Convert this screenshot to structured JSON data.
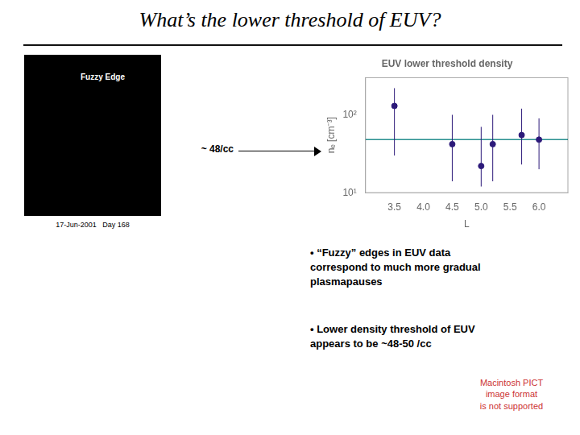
{
  "chart_data": {
    "type": "scatter",
    "title": "EUV lower threshold density",
    "x_label": "L",
    "y_label": "nₑ [cm⁻³]",
    "x": [
      3.5,
      4.5,
      5.0,
      5.2,
      5.7,
      6.0
    ],
    "values": [
      130,
      42,
      22,
      42,
      55,
      48
    ],
    "y_low": [
      30,
      14,
      12,
      14,
      23,
      20
    ],
    "y_high": [
      220,
      100,
      70,
      100,
      120,
      90
    ],
    "color": "#2d1a7a",
    "marker": "circle",
    "threshold": {
      "value": 48,
      "color": "#2a9090"
    },
    "xlim": [
      3.0,
      6.5
    ],
    "xticks": [
      3.5,
      {
        "value": 4.0,
        "label": "4.0"
      },
      4.5,
      {
        "value": 5.0,
        "label": "5.0"
      },
      5.5,
      {
        "value": 6.0,
        "label": "6.0"
      }
    ],
    "ylim": [
      10,
      300
    ],
    "yticks": [
      {
        "value": 10,
        "label": "10¹"
      },
      {
        "value": 100,
        "label": "10²"
      }
    ],
    "log": "y",
    "grid": false,
    "annotations": [
      {
        "text": "What’s the lower threshold of EUV?"
      },
      {
        "text": "~ 48/cc"
      },
      {
        "text": "• “Fuzzy” edges in EUV data\ncorrespond to much more gradual\nplasmapauses"
      },
      {
        "text": "• Lower density threshold of EUV\nappears to be ~48-50 /cc"
      },
      {
        "text": "Macintosh PICT\nimage format\nis not supported",
        "color": "#cc3333"
      },
      {
        "text": "Fuzzy Edge"
      },
      {
        "text": "17-Jun-2001   Day 168"
      }
    ]
  }
}
